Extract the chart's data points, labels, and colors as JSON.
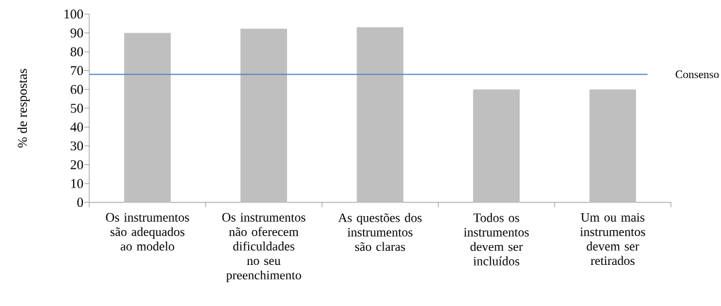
{
  "chart_data": {
    "type": "bar",
    "categories": [
      "Os instrumentos são adequados ao modelo",
      "Os instrumentos não oferecem dificuldades no seu preenchimento",
      "As questões dos instrumentos são claras",
      "Todos os instrumentos devem ser incluídos",
      "Um ou mais instrumentos devem ser retirados"
    ],
    "values": [
      90,
      92.3,
      93,
      60,
      60
    ],
    "color": "#bfbfbf",
    "ylabel": "% de respostas",
    "ylim": [
      0,
      100
    ],
    "yticks": [
      0,
      10,
      20,
      30,
      40,
      50,
      60,
      70,
      80,
      90,
      100
    ],
    "ref_lines": [
      {
        "axis": "y",
        "value": 68,
        "label": "Consenso",
        "color": "#4f81bd"
      }
    ]
  }
}
